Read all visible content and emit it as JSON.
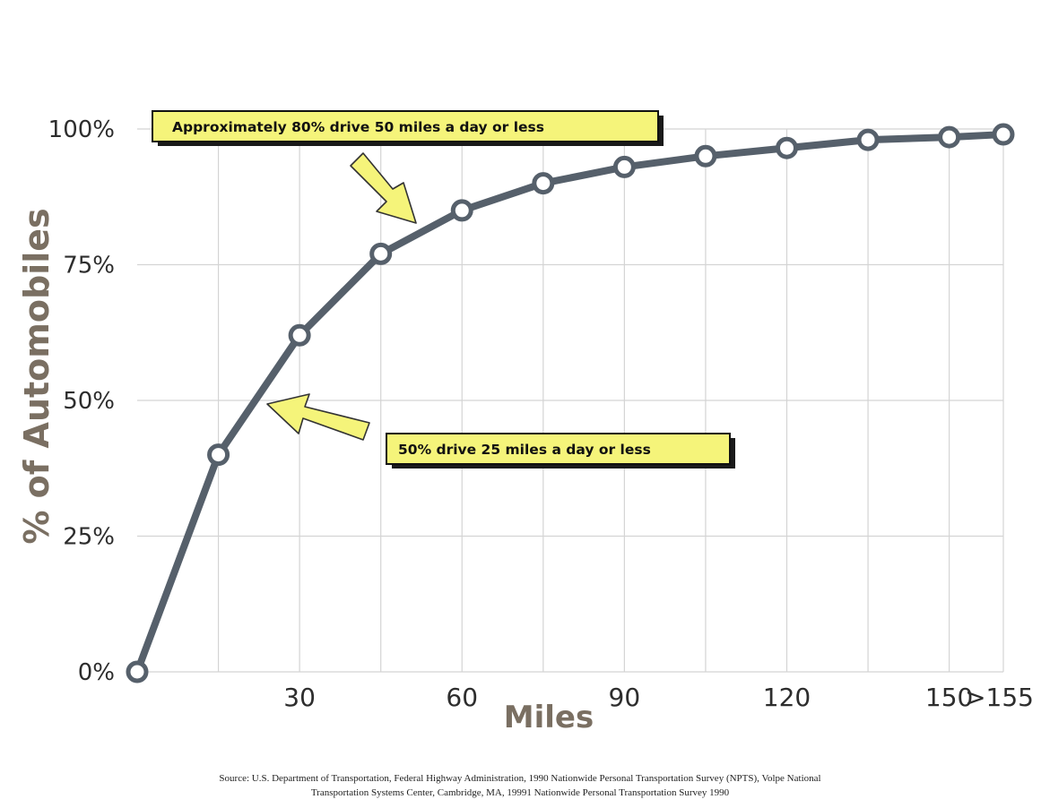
{
  "chart_data": {
    "type": "line",
    "xlabel": "Miles",
    "ylabel": "% of Automobiles",
    "ylim": [
      0,
      100
    ],
    "xlim": [
      0,
      160
    ],
    "y_ticks": [
      {
        "value": 0,
        "label": "0%"
      },
      {
        "value": 25,
        "label": "25%"
      },
      {
        "value": 50,
        "label": "50%"
      },
      {
        "value": 75,
        "label": "75%"
      },
      {
        "value": 100,
        "label": "100%"
      }
    ],
    "x_ticks": [
      {
        "value": 30,
        "label": "30"
      },
      {
        "value": 60,
        "label": "60"
      },
      {
        "value": 90,
        "label": "90"
      },
      {
        "value": 120,
        "label": "120"
      },
      {
        "value": 150,
        "label": "150"
      },
      {
        "value": 160,
        "label": ">155"
      }
    ],
    "x_gridlines": [
      15,
      30,
      45,
      60,
      75,
      90,
      105,
      120,
      135,
      150,
      160
    ],
    "grid": true,
    "series": [
      {
        "x": [
          0,
          15,
          30,
          45,
          60,
          75,
          90,
          105,
          120,
          135,
          150,
          160
        ],
        "y": [
          0,
          40,
          62,
          77,
          85,
          90,
          93,
          95,
          96.5,
          98,
          98.5,
          99
        ]
      }
    ],
    "annotations": [
      {
        "text": "Approximately 80% drive 50 miles a day or less",
        "points_to": {
          "x": 52,
          "y": 83.5
        }
      },
      {
        "text": "50% drive 25 miles a day or less",
        "points_to": {
          "x": 25,
          "y": 49.5
        }
      }
    ],
    "source_lines": [
      "Source: U.S. Department of Transportation, Federal Highway Administration, 1990 Nationwide Personal Transportation Survey (NPTS), Volpe National",
      "Transportation Systems Center, Cambridge, MA, 19991  Nationwide Personal Transportation Survey 1990"
    ],
    "colors": {
      "line": "#56606b",
      "point_fill": "#ffffff",
      "callout_fill": "#f5f47a",
      "axis_label": "#7a6f62",
      "grid": "#d4d4d4"
    }
  }
}
